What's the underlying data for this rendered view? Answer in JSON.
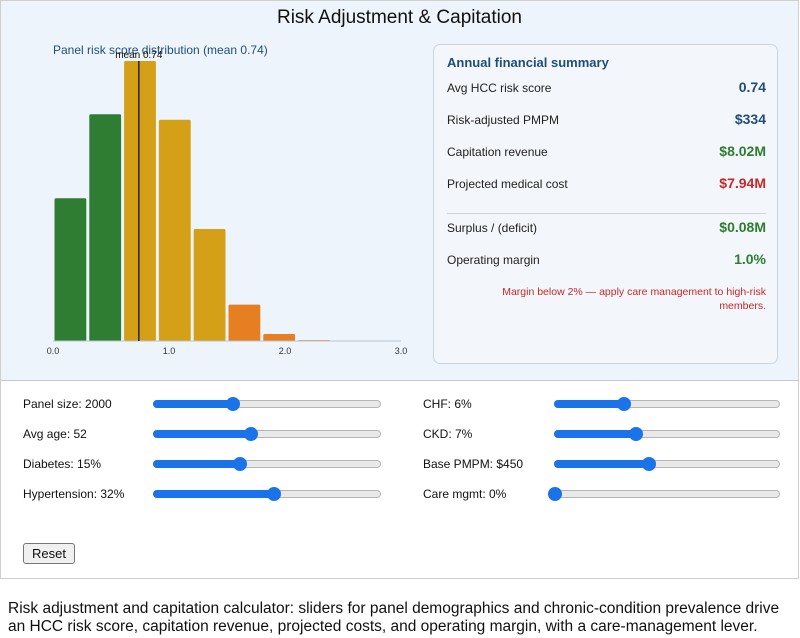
{
  "app": {
    "title": "Risk Adjustment & Capitation"
  },
  "chart_data": {
    "type": "bar",
    "title": "Panel risk score distribution (mean 0.74)",
    "x_ticks": [
      "0.0",
      "1.0",
      "2.0",
      "3.0"
    ],
    "xlim": [
      0.0,
      3.0
    ],
    "bins": [
      {
        "x0": 0.0,
        "x1": 0.3,
        "count": 510,
        "color": "#2e7d32"
      },
      {
        "x0": 0.3,
        "x1": 0.6,
        "count": 810,
        "color": "#2e7d32"
      },
      {
        "x0": 0.6,
        "x1": 0.9,
        "count": 1000,
        "color": "#d4a017"
      },
      {
        "x0": 0.9,
        "x1": 1.2,
        "count": 790,
        "color": "#d4a017"
      },
      {
        "x0": 1.2,
        "x1": 1.5,
        "count": 400,
        "color": "#d4a017"
      },
      {
        "x0": 1.5,
        "x1": 1.8,
        "count": 130,
        "color": "#e67e22"
      },
      {
        "x0": 1.8,
        "x1": 2.1,
        "count": 25,
        "color": "#e67e22"
      },
      {
        "x0": 2.1,
        "x1": 2.4,
        "count": 3,
        "color": "#e67e22"
      }
    ],
    "mean": 0.74,
    "mean_label": "mean 0.74",
    "grid": false,
    "legend": "none"
  },
  "summary": {
    "title": "Annual financial summary",
    "rows": [
      {
        "label": "Avg HCC risk score",
        "value": "0.74",
        "tone": "blue"
      },
      {
        "label": "Risk-adjusted PMPM",
        "value": "$334",
        "tone": "blue"
      },
      {
        "label": "Capitation revenue",
        "value": "$8.02M",
        "tone": "green"
      },
      {
        "label": "Projected medical cost",
        "value": "$7.94M",
        "tone": "red"
      },
      {
        "label": "Surplus / (deficit)",
        "value": "$0.08M",
        "tone": "green"
      },
      {
        "label": "Operating margin",
        "value": "1.0%",
        "tone": "green"
      }
    ],
    "warning": "Margin below 2% — apply care management to high-risk members."
  },
  "controls": [
    {
      "id": "panel-size",
      "label": "Panel size: 2000",
      "level": 0.35
    },
    {
      "id": "avg-age",
      "label": "Avg age: 52",
      "level": 0.43
    },
    {
      "id": "diabetes",
      "label": "Diabetes: 15%",
      "level": 0.38
    },
    {
      "id": "hypertension",
      "label": "Hypertension: 32%",
      "level": 0.53
    },
    {
      "id": "chf",
      "label": "CHF: 6%",
      "level": 0.31
    },
    {
      "id": "ckd",
      "label": "CKD: 7%",
      "level": 0.36
    },
    {
      "id": "base-pmpm",
      "label": "Base PMPM: $450",
      "level": 0.42
    },
    {
      "id": "care-mgmt",
      "label": "Care mgmt: 0%",
      "level": 0.0
    }
  ],
  "reset_label": "Reset",
  "caption": "Risk adjustment and capitation calculator: sliders for panel demographics and chronic-condition prevalence drive an HCC risk score, capitation revenue, projected costs, and operating margin, with a care-management lever."
}
